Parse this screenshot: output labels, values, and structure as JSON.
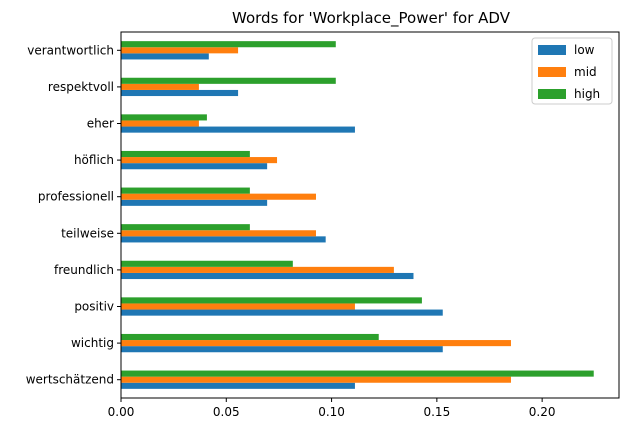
{
  "chart_data": {
    "type": "bar",
    "orientation": "horizontal",
    "title": "Words for 'Workplace_Power' for ADV",
    "xlabel": "",
    "ylabel": "",
    "xlim": [
      0,
      0.2365
    ],
    "xticks": [
      "0.00",
      "0.05",
      "0.10",
      "0.15",
      "0.20"
    ],
    "categories": [
      "verantwortlich",
      "respektvoll",
      "eher",
      "höflich",
      "professionell",
      "teilweise",
      "freundlich",
      "positiv",
      "wichtig",
      "wertschätzend"
    ],
    "series": [
      {
        "name": "low",
        "color": "#1f77b4",
        "values": [
          0.0417,
          0.0556,
          0.1111,
          0.0694,
          0.0694,
          0.0972,
          0.1389,
          0.1528,
          0.1528,
          0.1111
        ]
      },
      {
        "name": "mid",
        "color": "#ff7f0e",
        "values": [
          0.0556,
          0.037,
          0.037,
          0.0741,
          0.0926,
          0.0926,
          0.1296,
          0.1111,
          0.1852,
          0.1852
        ]
      },
      {
        "name": "high",
        "color": "#2ca02c",
        "values": [
          0.102,
          0.102,
          0.0408,
          0.0612,
          0.0612,
          0.0612,
          0.0816,
          0.1429,
          0.1224,
          0.2245
        ]
      }
    ],
    "legend": {
      "position": "top-right",
      "entries": [
        "low",
        "mid",
        "high"
      ]
    }
  }
}
